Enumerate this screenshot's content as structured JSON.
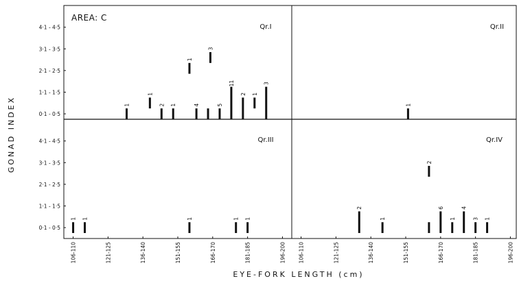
{
  "chart_data": {
    "type": "bar",
    "area_label": "AREA: C",
    "xlabel": "EYE-FORK LENGTH (cm)",
    "ylabel": "GONAD INDEX",
    "x_tick_labels": [
      "106-110",
      "121-125",
      "136-140",
      "151-155",
      "166-170",
      "181-185",
      "196-200"
    ],
    "y_tick_labels": [
      "0·1 - 0·5",
      "1·1 - 1·5",
      "2·1 - 2·5",
      "3·1 - 3·5",
      "4·1 - 4·5"
    ],
    "x_domain": [
      104,
      202
    ],
    "y_domain": [
      0,
      5
    ],
    "panels": [
      {
        "label": "Qr.I",
        "bars": [
          {
            "x": 131,
            "y0": 0,
            "y1": 0.5,
            "n": "1"
          },
          {
            "x": 141,
            "y0": 0.5,
            "y1": 1.0,
            "n": "1"
          },
          {
            "x": 146,
            "y0": 0,
            "y1": 0.5,
            "n": "2"
          },
          {
            "x": 151,
            "y0": 0,
            "y1": 0.5,
            "n": "1"
          },
          {
            "x": 158,
            "y0": 2.1,
            "y1": 2.6,
            "n": "1"
          },
          {
            "x": 161,
            "y0": 0,
            "y1": 0.5,
            "n": "4"
          },
          {
            "x": 166,
            "y0": 0,
            "y1": 0.5,
            "n": null
          },
          {
            "x": 167,
            "y0": 2.6,
            "y1": 3.1,
            "n": "3"
          },
          {
            "x": 171,
            "y0": 0,
            "y1": 0.5,
            "n": "5"
          },
          {
            "x": 176,
            "y0": 0,
            "y1": 1.5,
            "n": "11"
          },
          {
            "x": 181,
            "y0": 0,
            "y1": 1.0,
            "n": "2"
          },
          {
            "x": 186,
            "y0": 0.5,
            "y1": 1.0,
            "n": "1"
          },
          {
            "x": 191,
            "y0": 0,
            "y1": 1.5,
            "n": "3"
          }
        ]
      },
      {
        "label": "Qr.II",
        "bars": [
          {
            "x": 154,
            "y0": 0,
            "y1": 0.5,
            "n": "1"
          }
        ]
      },
      {
        "label": "Qr.III",
        "bars": [
          {
            "x": 108,
            "y0": 0,
            "y1": 0.5,
            "n": "1"
          },
          {
            "x": 113,
            "y0": 0,
            "y1": 0.5,
            "n": "1"
          },
          {
            "x": 158,
            "y0": 0,
            "y1": 0.5,
            "n": "1"
          },
          {
            "x": 178,
            "y0": 0,
            "y1": 0.5,
            "n": "1"
          },
          {
            "x": 183,
            "y0": 0,
            "y1": 0.5,
            "n": "1"
          }
        ]
      },
      {
        "label": "Qr.IV",
        "bars": [
          {
            "x": 133,
            "y0": 0,
            "y1": 1.0,
            "n": "2"
          },
          {
            "x": 143,
            "y0": 0,
            "y1": 0.5,
            "n": "1"
          },
          {
            "x": 163,
            "y0": 2.6,
            "y1": 3.1,
            "n": "2"
          },
          {
            "x": 163,
            "y0": 0,
            "y1": 0.5,
            "n": null
          },
          {
            "x": 168,
            "y0": 0,
            "y1": 1.0,
            "n": "6"
          },
          {
            "x": 173,
            "y0": 0,
            "y1": 0.5,
            "n": "1"
          },
          {
            "x": 178,
            "y0": 0,
            "y1": 1.0,
            "n": "4"
          },
          {
            "x": 183,
            "y0": 0,
            "y1": 0.5,
            "n": "3"
          },
          {
            "x": 188,
            "y0": 0,
            "y1": 0.5,
            "n": "1"
          }
        ]
      }
    ]
  }
}
